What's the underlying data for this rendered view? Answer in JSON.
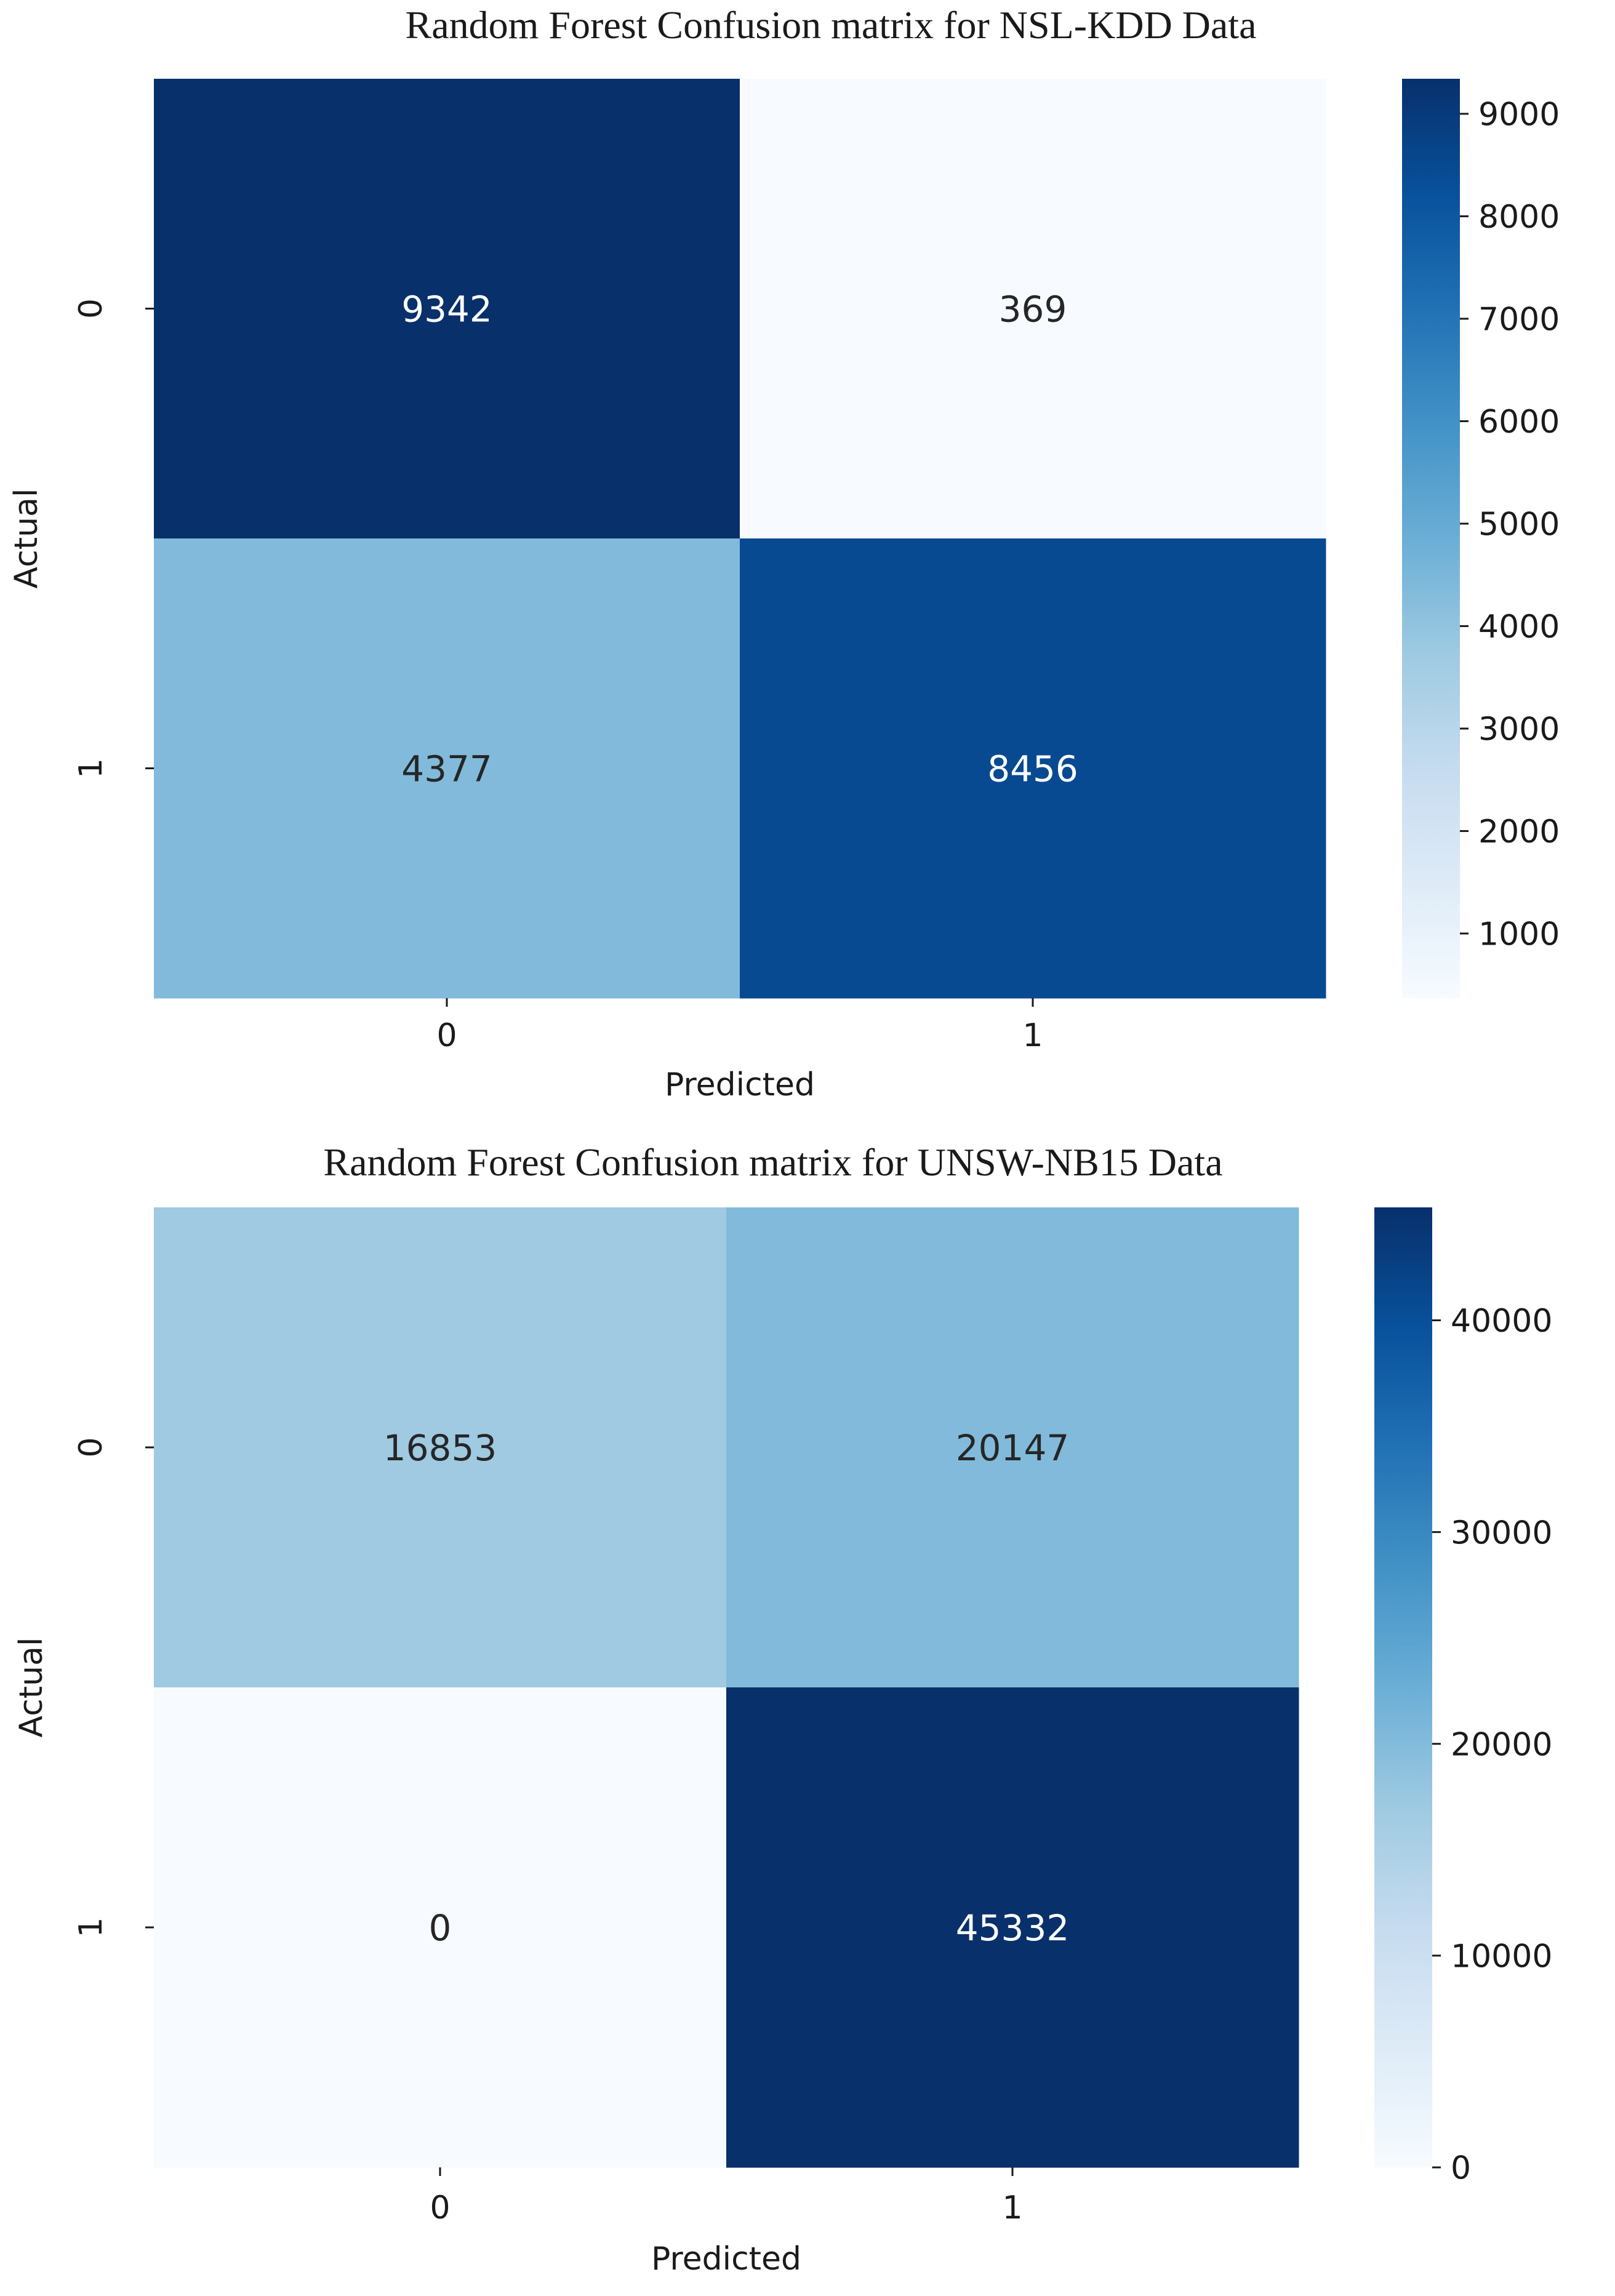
{
  "chart_data": [
    {
      "type": "heatmap",
      "title": "Random Forest Confusion matrix for NSL-KDD Data",
      "xlabel": "Predicted",
      "ylabel": "Actual",
      "x_categories": [
        "0",
        "1"
      ],
      "y_categories": [
        "0",
        "1"
      ],
      "values": [
        [
          9342,
          369
        ],
        [
          4377,
          8456
        ]
      ],
      "colormap": "Blues",
      "colorbar": {
        "min": 369,
        "max": 9342,
        "ticks": [
          1000,
          2000,
          3000,
          4000,
          5000,
          6000,
          7000,
          8000,
          9000
        ],
        "tick_labels": [
          "1000",
          "2000",
          "3000",
          "4000",
          "5000",
          "6000",
          "7000",
          "8000",
          "9000"
        ]
      }
    },
    {
      "type": "heatmap",
      "title": "Random Forest Confusion matrix for UNSW-NB15 Data",
      "xlabel": "Predicted",
      "ylabel": "Actual",
      "x_categories": [
        "0",
        "1"
      ],
      "y_categories": [
        "0",
        "1"
      ],
      "values": [
        [
          16853,
          20147
        ],
        [
          0,
          45332
        ]
      ],
      "colormap": "Blues",
      "colorbar": {
        "min": 0,
        "max": 45332,
        "ticks": [
          0,
          10000,
          20000,
          30000,
          40000
        ],
        "tick_labels": [
          "0",
          "10000",
          "20000",
          "30000",
          "40000"
        ]
      }
    }
  ]
}
